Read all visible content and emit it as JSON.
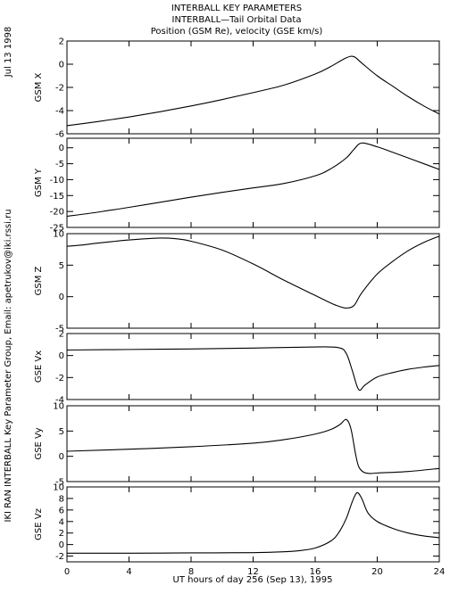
{
  "header": {
    "date_stamp": "Jul 13 1998",
    "title_lines": [
      "INTERBALL KEY PARAMETERS",
      "INTERBALL—Tail Orbital Data",
      "Position (GSM Re), velocity (GSE km/s)"
    ],
    "side_credit": "IKI RAN INTERBALL Key Parameter Group, Email: apetrukov@iki.rssi.ru"
  },
  "chart_data": {
    "type": "line",
    "x_axis": {
      "label": "UT hours of day 256 (Sep 13), 1995",
      "range": [
        0,
        24
      ],
      "ticks": [
        0,
        4,
        8,
        12,
        16,
        20,
        24
      ]
    },
    "panels": [
      {
        "ylabel": "GSM X",
        "ylim": [
          -6,
          2
        ],
        "yticks": [
          2,
          0,
          -2,
          -4,
          -6
        ],
        "x": [
          0,
          2,
          4,
          6,
          8,
          10,
          12,
          14,
          16,
          17,
          18,
          18.5,
          19,
          20,
          21,
          22,
          23,
          24
        ],
        "y": [
          -5.3,
          -4.95,
          -4.55,
          -4.1,
          -3.6,
          -3.05,
          -2.45,
          -1.8,
          -0.85,
          -0.2,
          0.55,
          0.65,
          0.1,
          -1.0,
          -1.9,
          -2.8,
          -3.6,
          -4.3
        ]
      },
      {
        "ylabel": "GSM Y",
        "ylim": [
          -25,
          3
        ],
        "yticks": [
          0,
          -5,
          -10,
          -15,
          -20,
          -25
        ],
        "x": [
          0,
          2,
          4,
          6,
          8,
          10,
          12,
          14,
          16,
          17,
          18,
          18.5,
          19,
          20,
          21,
          22,
          23,
          24
        ],
        "y": [
          -21.5,
          -20.2,
          -18.7,
          -17.1,
          -15.5,
          -14.0,
          -12.6,
          -11.2,
          -8.8,
          -6.6,
          -3.2,
          -0.5,
          1.5,
          0.3,
          -1.4,
          -3.2,
          -5.0,
          -6.8
        ]
      },
      {
        "ylabel": "GSM Z",
        "ylim": [
          -5,
          10
        ],
        "yticks": [
          10,
          5,
          0,
          -5
        ],
        "x": [
          0,
          1,
          2,
          4,
          6,
          7,
          8,
          10,
          12,
          14,
          16,
          17,
          17.5,
          18,
          18.5,
          19,
          20,
          21,
          22,
          23,
          24
        ],
        "y": [
          8.0,
          8.2,
          8.5,
          9.0,
          9.3,
          9.2,
          8.8,
          7.4,
          5.2,
          2.6,
          0.2,
          -1.0,
          -1.5,
          -1.8,
          -1.4,
          0.6,
          3.6,
          5.6,
          7.3,
          8.6,
          9.6
        ]
      },
      {
        "ylabel": "GSE Vx",
        "ylim": [
          -4,
          2
        ],
        "yticks": [
          2,
          0,
          -2,
          -4
        ],
        "x": [
          0,
          4,
          8,
          12,
          16,
          17.5,
          18,
          18.4,
          18.7,
          18.9,
          19.2,
          20,
          21,
          22,
          23,
          24
        ],
        "y": [
          0.5,
          0.55,
          0.6,
          0.68,
          0.78,
          0.72,
          0.2,
          -1.4,
          -2.8,
          -3.15,
          -2.7,
          -1.95,
          -1.55,
          -1.25,
          -1.05,
          -0.9
        ]
      },
      {
        "ylabel": "GSE Vy",
        "ylim": [
          -5,
          10
        ],
        "yticks": [
          10,
          5,
          0,
          -5
        ],
        "x": [
          0,
          4,
          8,
          12,
          14,
          16,
          17,
          17.6,
          18,
          18.3,
          18.6,
          18.8,
          19.1,
          19.5,
          20,
          22,
          24
        ],
        "y": [
          1.0,
          1.4,
          1.9,
          2.6,
          3.3,
          4.4,
          5.3,
          6.3,
          7.3,
          5.5,
          0.5,
          -2.0,
          -3.1,
          -3.4,
          -3.3,
          -3.0,
          -2.4
        ]
      },
      {
        "ylabel": "GSE Vz",
        "ylim": [
          -3,
          10
        ],
        "yticks": [
          10,
          8,
          6,
          4,
          2,
          0,
          -2
        ],
        "x": [
          0,
          4,
          8,
          12,
          14,
          15,
          16,
          17,
          17.5,
          18,
          18.4,
          18.7,
          19,
          19.4,
          20,
          21,
          22,
          23,
          24
        ],
        "y": [
          -1.5,
          -1.5,
          -1.45,
          -1.4,
          -1.25,
          -1.05,
          -0.6,
          0.6,
          2.0,
          4.5,
          7.5,
          9.0,
          8.0,
          5.5,
          4.0,
          2.8,
          2.0,
          1.5,
          1.2
        ]
      }
    ]
  }
}
